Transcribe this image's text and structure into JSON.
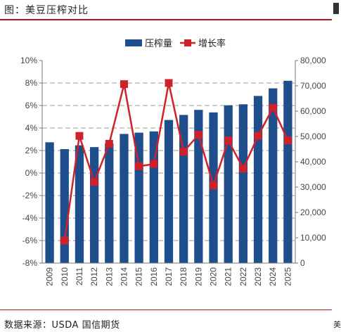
{
  "header": {
    "title": "图：美豆压榨对比"
  },
  "footer": {
    "source": "数据来源：USDA 国信期货",
    "corner": "美"
  },
  "colors": {
    "bar": "#1f4e8c",
    "line": "#d0202a",
    "rule": "#b5121b",
    "grid": "#999999"
  },
  "chart_data": {
    "type": "bar",
    "categories": [
      "2009",
      "2010",
      "2011",
      "2012",
      "2013",
      "2014",
      "2015",
      "2016",
      "2017",
      "2018",
      "2019",
      "2020",
      "2021",
      "2022",
      "2023",
      "2024",
      "2025"
    ],
    "series": [
      {
        "name": "压榨量",
        "type": "bar",
        "axis": "right",
        "values": [
          47700,
          45000,
          46500,
          45800,
          47200,
          51000,
          51500,
          52000,
          56500,
          58500,
          60500,
          59500,
          62300,
          62700,
          66000,
          69000,
          72000
        ]
      },
      {
        "name": "增长率",
        "type": "line",
        "axis": "left",
        "values": [
          null,
          -6.0,
          3.3,
          -0.8,
          2.6,
          7.9,
          0.6,
          0.8,
          8.0,
          1.9,
          3.4,
          -1.1,
          2.9,
          0.4,
          3.3,
          5.8,
          2.9
        ]
      }
    ],
    "yleft": {
      "ylim": [
        -8,
        10
      ],
      "ticks": [
        "-8%",
        "-6%",
        "-4%",
        "-2%",
        "0%",
        "2%",
        "4%",
        "6%",
        "8%",
        "10%"
      ]
    },
    "yright": {
      "ylim": [
        0,
        80000
      ],
      "ticks": [
        "0",
        "10,000",
        "20,000",
        "30,000",
        "40,000",
        "50,000",
        "60,000",
        "70,000",
        "80,000"
      ]
    },
    "grid": true,
    "legend": "top-center"
  }
}
